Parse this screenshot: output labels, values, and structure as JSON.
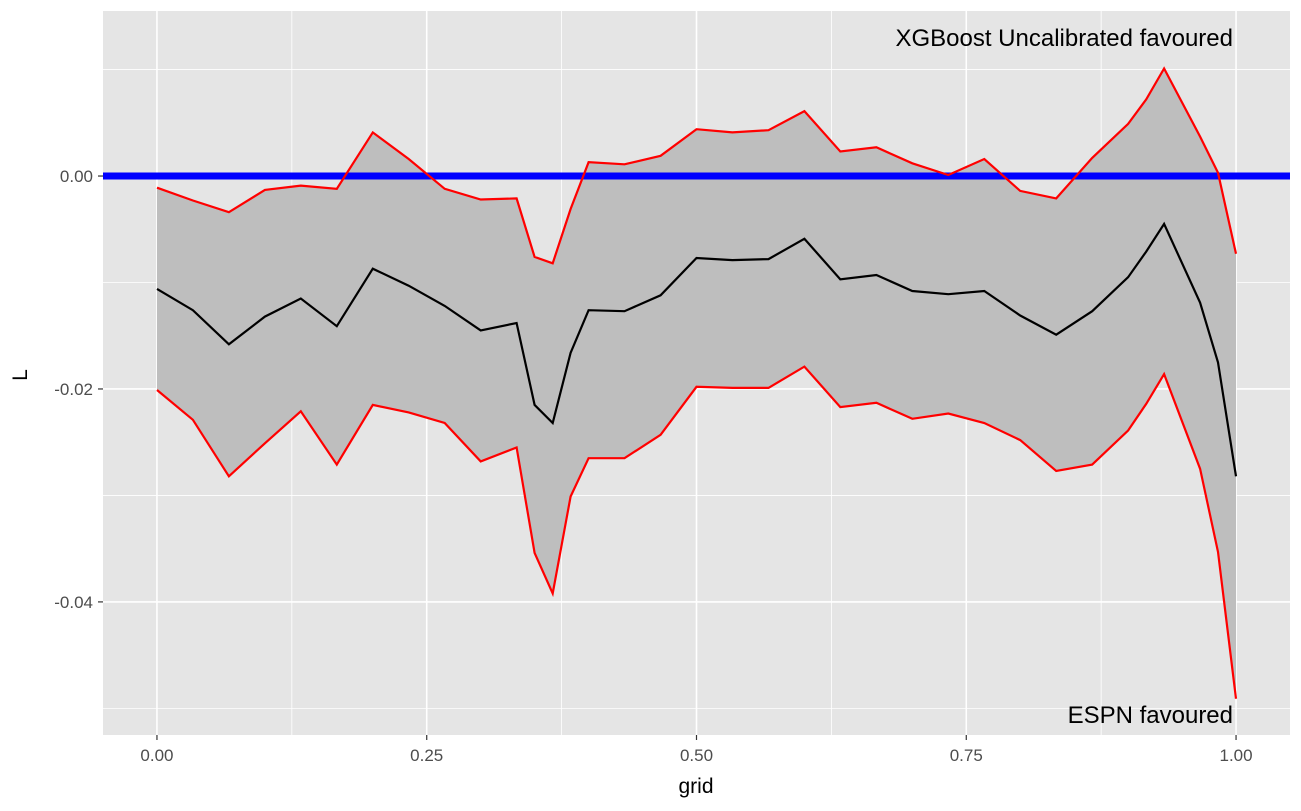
{
  "chart_data": {
    "type": "line",
    "xlabel": "grid",
    "ylabel": "L",
    "xlim": [
      -0.05,
      1.05
    ],
    "ylim": [
      -0.0525,
      0.0155
    ],
    "x_ticks": [
      0.0,
      0.25,
      0.5,
      0.75,
      1.0
    ],
    "x_tick_labels": [
      "0.00",
      "0.25",
      "0.50",
      "0.75",
      "1.00"
    ],
    "y_ticks": [
      -0.04,
      -0.02,
      0.0
    ],
    "y_tick_labels": [
      "-0.04",
      "-0.02",
      "0.00"
    ],
    "grid": true,
    "background": "#e5e5e5",
    "annotations": {
      "top": "XGBoost Uncalibrated favoured",
      "bottom": "ESPN favoured"
    },
    "reference_line": {
      "y": 0.0,
      "color": "#0000ff"
    },
    "colors": {
      "estimate": "#000000",
      "bounds": "#ff0000",
      "band": "#bebebe",
      "grid": "#ffffff"
    },
    "x": [
      0.0,
      0.0333,
      0.0667,
      0.1,
      0.1333,
      0.1667,
      0.2,
      0.2333,
      0.2667,
      0.3,
      0.3333,
      0.35,
      0.3667,
      0.3833,
      0.4,
      0.4333,
      0.4667,
      0.5,
      0.5333,
      0.5667,
      0.6,
      0.6333,
      0.6667,
      0.7,
      0.7333,
      0.7667,
      0.8,
      0.8333,
      0.8667,
      0.9,
      0.9167,
      0.9333,
      0.9667,
      0.9833,
      1.0
    ],
    "series": [
      {
        "role": "estimate",
        "values": [
          -0.0106,
          -0.0126,
          -0.0158,
          -0.0132,
          -0.0115,
          -0.0141,
          -0.0087,
          -0.0103,
          -0.0122,
          -0.0145,
          -0.0138,
          -0.0215,
          -0.0232,
          -0.0166,
          -0.0126,
          -0.0127,
          -0.0112,
          -0.0077,
          -0.0079,
          -0.0078,
          -0.0059,
          -0.0097,
          -0.0093,
          -0.0108,
          -0.0111,
          -0.0108,
          -0.0131,
          -0.0149,
          -0.0127,
          -0.0095,
          -0.0071,
          -0.0045,
          -0.0119,
          -0.0175,
          -0.0282
        ]
      },
      {
        "role": "upper",
        "values": [
          -0.0011,
          -0.0023,
          -0.0034,
          -0.0013,
          -0.0009,
          -0.0012,
          0.0041,
          0.0016,
          -0.0012,
          -0.0022,
          -0.0021,
          -0.0076,
          -0.0082,
          -0.0031,
          0.0013,
          0.0011,
          0.0019,
          0.0044,
          0.0041,
          0.0043,
          0.0061,
          0.0023,
          0.0027,
          0.0012,
          0.0001,
          0.0016,
          -0.0014,
          -0.0021,
          0.0017,
          0.0049,
          0.0072,
          0.0101,
          0.0037,
          0.0003,
          -0.0073
        ]
      },
      {
        "role": "lower",
        "values": [
          -0.0201,
          -0.0229,
          -0.0282,
          -0.0251,
          -0.0221,
          -0.0271,
          -0.0215,
          -0.0222,
          -0.0232,
          -0.0268,
          -0.0255,
          -0.0354,
          -0.0392,
          -0.0301,
          -0.0265,
          -0.0265,
          -0.0243,
          -0.0198,
          -0.0199,
          -0.0199,
          -0.0179,
          -0.0217,
          -0.0213,
          -0.0228,
          -0.0223,
          -0.0232,
          -0.0248,
          -0.0277,
          -0.0271,
          -0.0239,
          -0.0214,
          -0.0186,
          -0.0275,
          -0.0353,
          -0.0491
        ]
      }
    ]
  }
}
